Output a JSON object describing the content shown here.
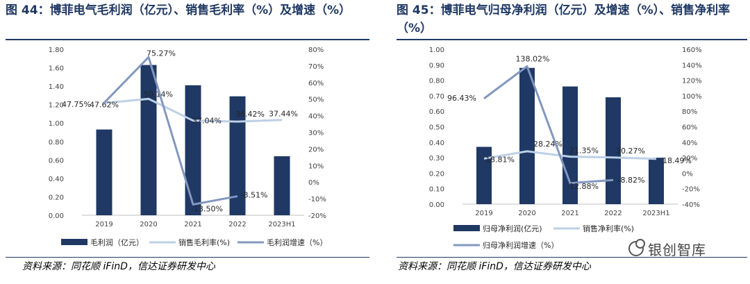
{
  "left": {
    "title": "图 44：博菲电气毛利润（亿元）、销售毛利率（%）及增速（%）",
    "source": "资料来源：同花顺 iFinD，信达证券研发中心",
    "chart_data": {
      "type": "bar",
      "categories": [
        "2019",
        "2020",
        "2021",
        "2022",
        "2023H1"
      ],
      "ylim": [
        0,
        1.8
      ],
      "y_ticks": [
        "0.00",
        "0.20",
        "0.40",
        "0.60",
        "0.80",
        "1.00",
        "1.20",
        "1.40",
        "1.60",
        "1.80"
      ],
      "y2lim": [
        -20,
        80
      ],
      "y2_ticks": [
        "-20%",
        "-10%",
        "0%",
        "10%",
        "20%",
        "30%",
        "40%",
        "50%",
        "60%",
        "70%",
        "80%"
      ],
      "series": [
        {
          "name": "毛利润（亿元）",
          "kind": "bar",
          "axis": "left",
          "color": "#1f3864",
          "values": [
            0.93,
            1.63,
            1.41,
            1.29,
            0.64
          ]
        },
        {
          "name": "销售毛利率(%)",
          "kind": "line",
          "axis": "right",
          "color": "#bdd0e5",
          "values": [
            47.62,
            50.14,
            37.04,
            36.42,
            37.44
          ],
          "labels": [
            "47.62%",
            "50.14%",
            "37.04%",
            "36.42%",
            "37.44%"
          ]
        },
        {
          "name": "毛利润增速（%）",
          "kind": "line",
          "axis": "right",
          "color": "#8297be",
          "values": [
            47.75,
            75.27,
            -13.5,
            -8.51,
            null
          ],
          "labels": [
            "47.75%",
            "75.27%",
            "-13.50%",
            "-8.51%",
            ""
          ]
        }
      ],
      "legend": "bottom"
    }
  },
  "right": {
    "title": "图 45：博菲电气归母净利润（亿元）及增速（%）、销售净利率（%）",
    "source": "资料来源：同花顺 iFinD，信达证券研发中心",
    "chart_data": {
      "type": "bar",
      "categories": [
        "2019",
        "2020",
        "2021",
        "2022",
        "2023H1"
      ],
      "ylim": [
        0,
        1.0
      ],
      "y_ticks": [
        "0.00",
        "0.10",
        "0.20",
        "0.30",
        "0.40",
        "0.50",
        "0.60",
        "0.70",
        "0.80",
        "0.90",
        "1.00"
      ],
      "y2lim": [
        -40,
        160
      ],
      "y2_ticks": [
        "-40%",
        "-20%",
        "0%",
        "20%",
        "40%",
        "60%",
        "80%",
        "100%",
        "120%",
        "140%",
        "160%"
      ],
      "series": [
        {
          "name": "归母净利润(亿元)",
          "kind": "bar",
          "axis": "left",
          "color": "#1f3864",
          "values": [
            0.37,
            0.88,
            0.76,
            0.69,
            0.3
          ]
        },
        {
          "name": "销售净利率(%)",
          "kind": "line",
          "axis": "right",
          "color": "#bdd0e5",
          "values": [
            18.81,
            28.24,
            21.35,
            20.27,
            18.49
          ],
          "labels": [
            "18.81%",
            "28.24%",
            "21.35%",
            "20.27%",
            "18.49%"
          ]
        },
        {
          "name": "归母净利润增速（%）",
          "kind": "line",
          "axis": "right",
          "color": "#8297be",
          "values": [
            96.43,
            138.02,
            -12.88,
            -8.82,
            null
          ],
          "labels": [
            "96.43%",
            "138.02%",
            "-12.88%",
            "-8.82%",
            ""
          ]
        }
      ],
      "legend": "bottom"
    }
  },
  "watermark": {
    "text": "银创智库",
    "icon": "wechat-icon"
  }
}
